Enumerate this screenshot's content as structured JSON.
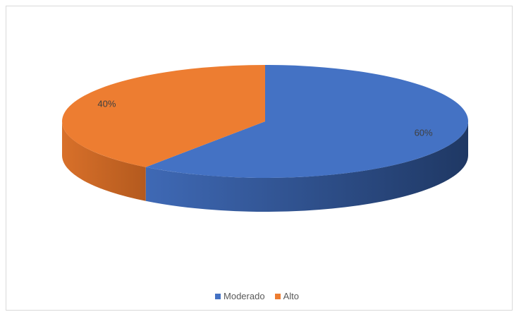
{
  "chart_data": {
    "type": "pie",
    "title": "",
    "categories": [
      "Moderado",
      "Alto"
    ],
    "values": [
      60,
      40
    ],
    "data_labels": [
      "60%",
      "40%"
    ],
    "colors": [
      "#4472c4",
      "#ed7d31"
    ],
    "legend_position": "bottom",
    "style": "3d"
  }
}
